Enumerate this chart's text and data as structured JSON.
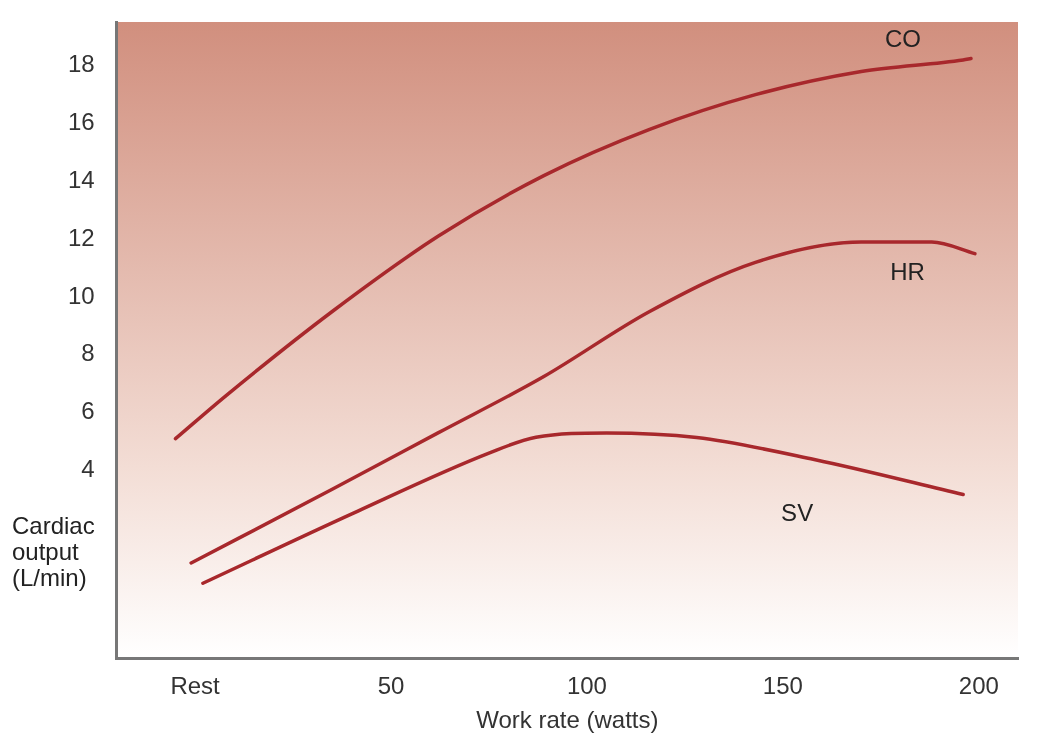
{
  "chart_data": {
    "type": "line",
    "xlabel": "Work rate (watts)",
    "ylabel": "Cardiac output (L/min)",
    "xlim": [
      -20,
      210
    ],
    "xticks": [
      {
        "value": 0,
        "label": "Rest"
      },
      50,
      100,
      150,
      200
    ],
    "ylim": [
      -2.5,
      19.5
    ],
    "yticks": [
      4,
      6,
      8,
      10,
      12,
      14,
      16,
      18
    ],
    "grid": false,
    "legend": false,
    "marker": "none",
    "line_style": "solid",
    "series": [
      {
        "name": "CO",
        "color": "#a8282c",
        "x": [
          -5,
          8,
          35,
          62,
          89,
          116,
          143,
          170,
          196,
          198
        ],
        "values": [
          5.1,
          6.6,
          9.5,
          12.1,
          14.2,
          15.8,
          17.0,
          17.8,
          18.2,
          18.25
        ]
      },
      {
        "name": "HR",
        "color": "#a8282c",
        "x": [
          -1,
          35,
          62,
          89,
          116,
          143,
          170,
          188,
          199
        ],
        "values": [
          0.8,
          3.35,
          5.3,
          7.25,
          9.5,
          11.2,
          11.9,
          11.9,
          11.5
        ]
      },
      {
        "name": "SV",
        "color": "#a8282c",
        "x": [
          2,
          40,
          75,
          87,
          105,
          128,
          158,
          196
        ],
        "values": [
          0.1,
          2.5,
          4.6,
          5.15,
          5.3,
          5.14,
          4.38,
          3.17
        ]
      }
    ]
  }
}
